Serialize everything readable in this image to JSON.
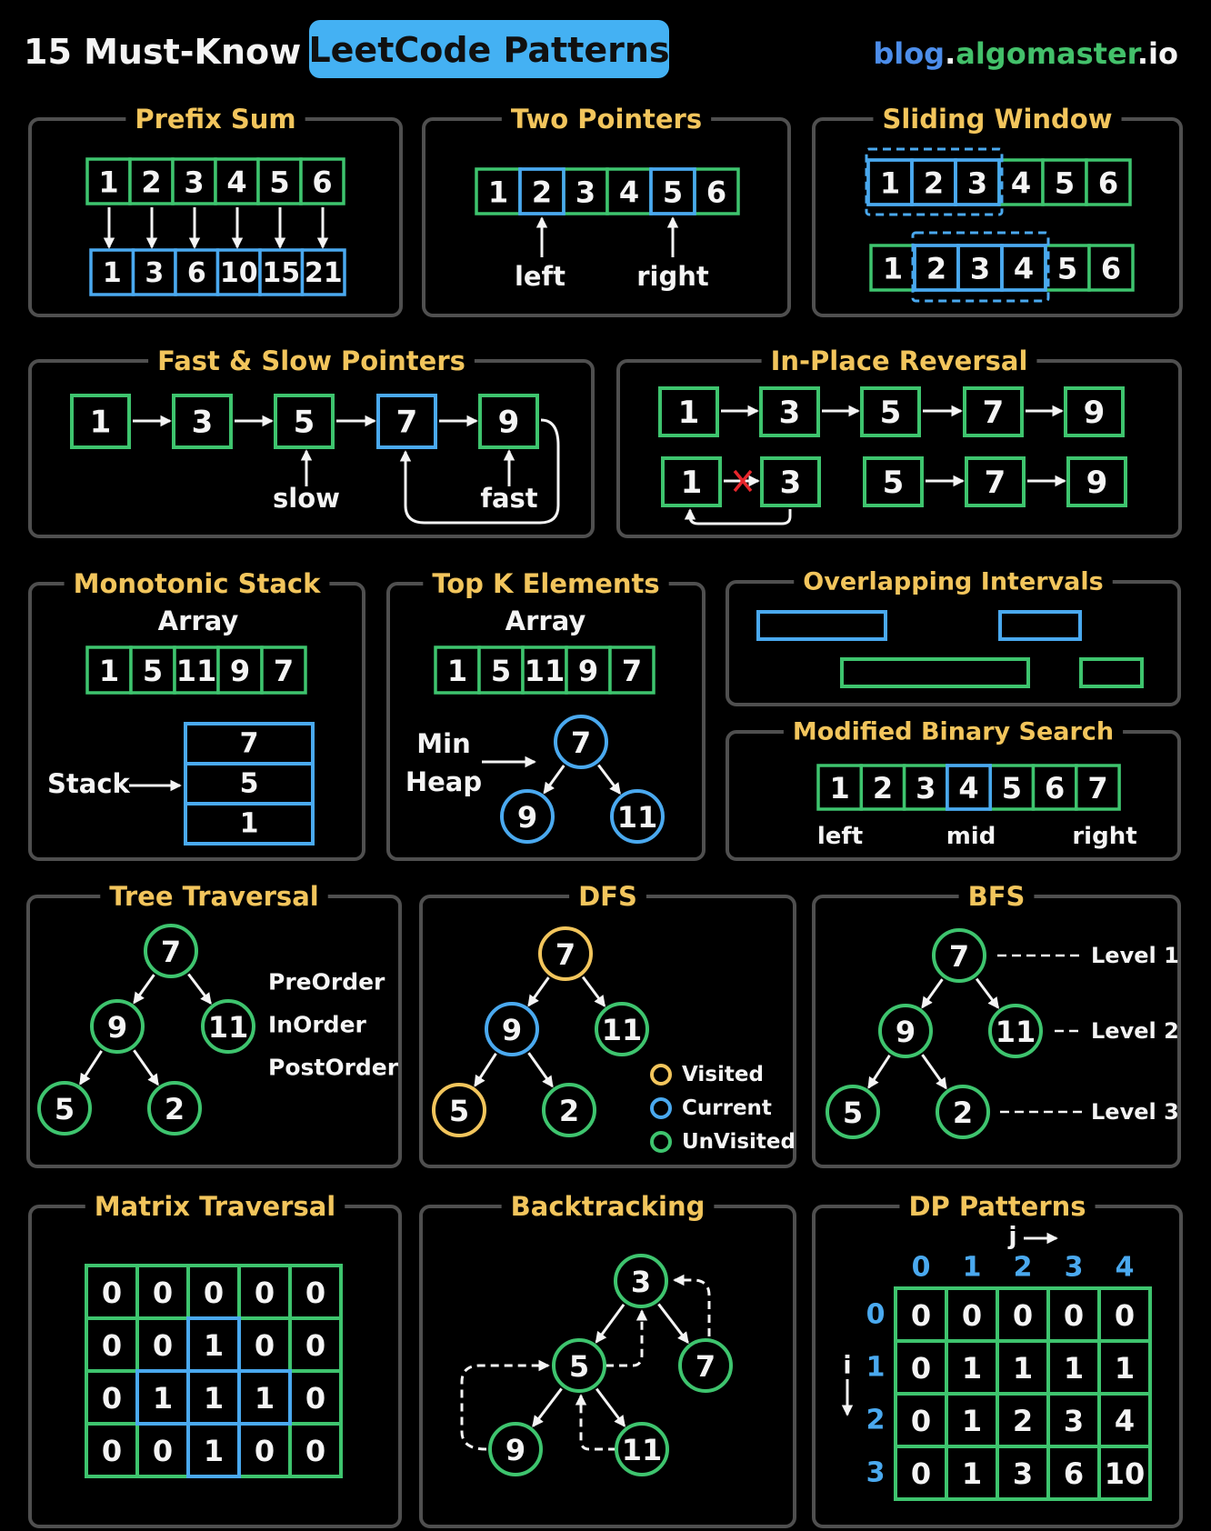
{
  "header": {
    "title": "15 Must-Know",
    "badge": "LeetCode Patterns",
    "site": {
      "blog": "blog",
      "dot1": ".",
      "algomaster": "algomaster",
      "dot2": ".",
      "io": "io"
    }
  },
  "colors": {
    "background": "#000000",
    "title_yellow": "#f2c55c",
    "green": "#3ec46e",
    "blue": "#4aa9ef",
    "badge_blue": "#44b1f3",
    "panel_border": "#4f4f4f",
    "white": "#f4f4f4",
    "red": "#e8262c",
    "link_blue": "#4c8dea",
    "link_green": "#43c06a"
  },
  "panels": {
    "prefix_sum": {
      "title": "Prefix Sum",
      "input": [
        "1",
        "2",
        "3",
        "4",
        "5",
        "6"
      ],
      "output": [
        "1",
        "3",
        "6",
        "10",
        "15",
        "21"
      ]
    },
    "two_pointers": {
      "title": "Two Pointers",
      "array": [
        "1",
        "2",
        "3",
        "4",
        "5",
        "6"
      ],
      "left_label": "left",
      "right_label": "right"
    },
    "sliding_window": {
      "title": "Sliding Window",
      "row1": [
        "1",
        "2",
        "3",
        "4",
        "5",
        "6"
      ],
      "row2": [
        "1",
        "2",
        "3",
        "4",
        "5",
        "6"
      ]
    },
    "fast_slow": {
      "title": "Fast & Slow Pointers",
      "nodes": [
        "1",
        "3",
        "5",
        "7",
        "9"
      ],
      "slow_label": "slow",
      "fast_label": "fast"
    },
    "in_place_reversal": {
      "title": "In-Place Reversal",
      "row1": [
        "1",
        "3",
        "5",
        "7",
        "9"
      ],
      "row2": [
        "1",
        "3",
        "5",
        "7",
        "9"
      ]
    },
    "monotonic_stack": {
      "title": "Monotonic Stack",
      "array_label": "Array",
      "array": [
        "1",
        "5",
        "11",
        "9",
        "7"
      ],
      "stack_label": "Stack",
      "stack": [
        "7",
        "5",
        "1"
      ]
    },
    "top_k": {
      "title": "Top K Elements",
      "array_label": "Array",
      "array": [
        "1",
        "5",
        "11",
        "9",
        "7"
      ],
      "heap_label_1": "Min",
      "heap_label_2": "Heap",
      "heap": [
        "7",
        "9",
        "11"
      ]
    },
    "overlapping_intervals": {
      "title": "Overlapping Intervals"
    },
    "modified_binary_search": {
      "title": "Modified Binary Search",
      "array": [
        "1",
        "2",
        "3",
        "4",
        "5",
        "6",
        "7"
      ],
      "left_label": "left",
      "mid_label": "mid",
      "right_label": "right"
    },
    "tree_traversal": {
      "title": "Tree Traversal",
      "nodes": [
        "7",
        "9",
        "11",
        "5",
        "2"
      ],
      "orders": [
        "PreOrder",
        "InOrder",
        "PostOrder"
      ]
    },
    "dfs": {
      "title": "DFS",
      "nodes": [
        "7",
        "9",
        "11",
        "5",
        "2"
      ],
      "legend": [
        "Visited",
        "Current",
        "UnVisited"
      ]
    },
    "bfs": {
      "title": "BFS",
      "nodes": [
        "7",
        "9",
        "11",
        "5",
        "2"
      ],
      "levels": [
        "Level 1",
        "Level 2",
        "Level 3"
      ]
    },
    "matrix_traversal": {
      "title": "Matrix Traversal",
      "grid": [
        [
          "0",
          "0",
          "0",
          "0",
          "0"
        ],
        [
          "0",
          "0",
          "1",
          "0",
          "0"
        ],
        [
          "0",
          "1",
          "1",
          "1",
          "0"
        ],
        [
          "0",
          "0",
          "1",
          "0",
          "0"
        ]
      ]
    },
    "backtracking": {
      "title": "Backtracking",
      "nodes": [
        "3",
        "5",
        "7",
        "9",
        "11"
      ]
    },
    "dp_patterns": {
      "title": "DP Patterns",
      "j_label": "j",
      "i_label": "i",
      "col_headers": [
        "0",
        "1",
        "2",
        "3",
        "4"
      ],
      "row_headers": [
        "0",
        "1",
        "2",
        "3"
      ],
      "grid": [
        [
          "0",
          "0",
          "0",
          "0",
          "0"
        ],
        [
          "0",
          "1",
          "1",
          "1",
          "1"
        ],
        [
          "0",
          "1",
          "2",
          "3",
          "4"
        ],
        [
          "0",
          "1",
          "3",
          "6",
          "10"
        ]
      ]
    }
  }
}
